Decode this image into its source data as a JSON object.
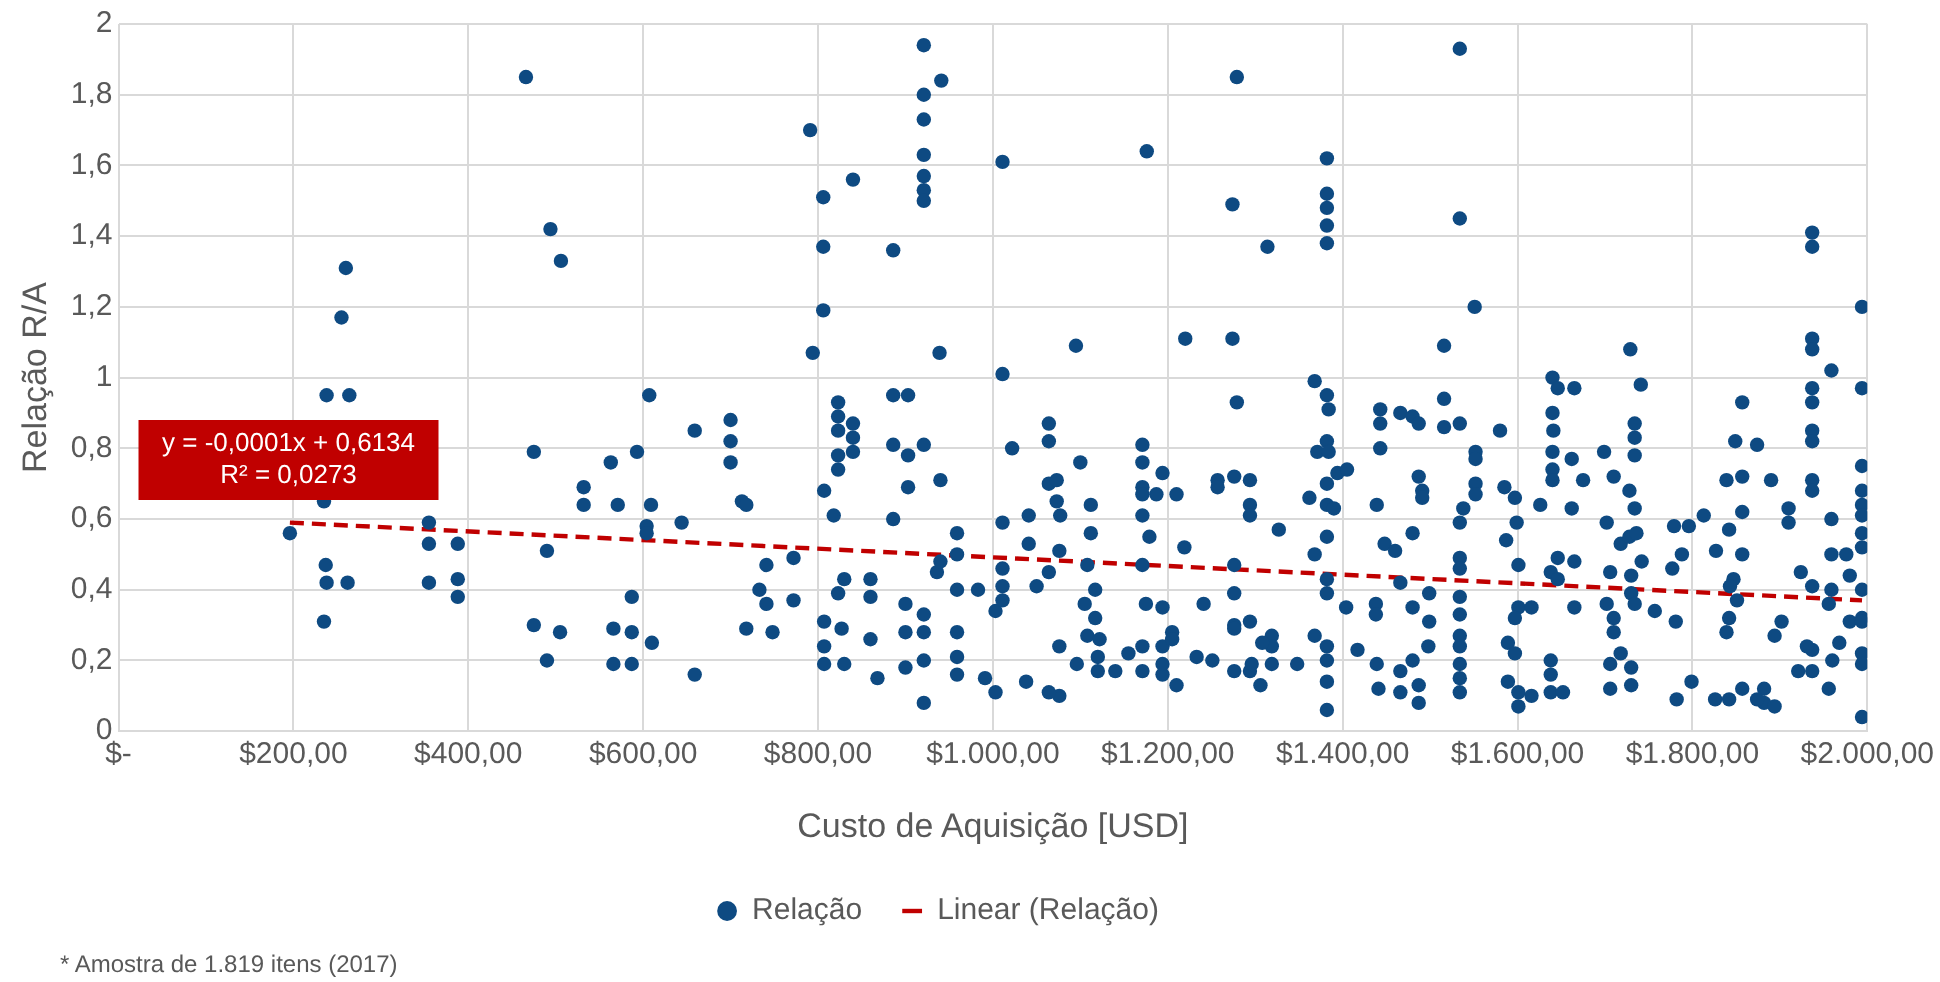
{
  "chart_data": {
    "type": "scatter",
    "xlabel": "Custo de Aquisição [USD]",
    "ylabel": "Relação R/A",
    "xlim": [
      0,
      2000
    ],
    "ylim": [
      0,
      2
    ],
    "xticks": [
      {
        "value": 0,
        "label": "$-"
      },
      {
        "value": 200,
        "label": "$200,00"
      },
      {
        "value": 400,
        "label": "$400,00"
      },
      {
        "value": 600,
        "label": "$600,00"
      },
      {
        "value": 800,
        "label": "$800,00"
      },
      {
        "value": 1000,
        "label": "$1.000,00"
      },
      {
        "value": 1200,
        "label": "$1.200,00"
      },
      {
        "value": 1400,
        "label": "$1.400,00"
      },
      {
        "value": 1600,
        "label": "$1.600,00"
      },
      {
        "value": 1800,
        "label": "$1.800,00"
      },
      {
        "value": 2000,
        "label": "$2.000,00"
      }
    ],
    "yticks": [
      0,
      {
        "value": 0.2,
        "label": "0,2"
      },
      {
        "value": 0.4,
        "label": "0,4"
      },
      {
        "value": 0.6,
        "label": "0,6"
      },
      {
        "value": 0.8,
        "label": "0,8"
      },
      1,
      {
        "value": 1.2,
        "label": "1,2"
      },
      {
        "value": 1.4,
        "label": "1,4"
      },
      {
        "value": 1.6,
        "label": "1,6"
      },
      {
        "value": 1.8,
        "label": "1,8"
      },
      2
    ],
    "grid": true,
    "legend": "bottom",
    "annotations": [
      "y = -0,0001x + 0,6134",
      "R² = 0,0273",
      "* Amostra de 1.819 itens (2017)"
    ],
    "series": [
      {
        "type": "scatter",
        "name": "Relação",
        "color": "#0e4a82",
        "marker": "circle",
        "x": [
          466,
          494,
          506,
          260,
          255,
          238,
          264,
          196,
          235,
          237,
          238,
          262,
          235,
          355,
          355,
          388,
          355,
          388,
          388,
          475,
          490,
          475,
          505,
          490,
          532,
          532,
          563,
          593,
          607,
          571,
          609,
          604,
          604,
          644,
          587,
          566,
          587,
          610,
          566,
          587,
          659,
          700,
          700,
          659,
          713,
          700,
          718,
          741,
          733,
          741,
          772,
          772,
          718,
          748,
          791,
          806,
          806,
          806,
          794,
          840,
          886,
          921,
          921,
          921,
          921,
          921,
          921,
          921,
          941,
          939,
          823,
          823,
          823,
          840,
          840,
          840,
          823,
          823,
          807,
          818,
          807,
          827,
          807,
          807,
          830,
          823,
          830,
          886,
          903,
          886,
          903,
          903,
          886,
          860,
          860,
          860,
          868,
          900,
          900,
          900,
          921,
          936,
          921,
          921,
          921,
          940,
          921,
          940,
          959,
          959,
          959,
          959,
          959,
          959,
          1011,
          1011,
          1011,
          1041,
          1022,
          1011,
          1011,
          1003,
          1011,
          983,
          991,
          1003,
          1038,
          1064,
          1064,
          1064,
          1073,
          1073,
          1077,
          1041,
          1076,
          1064,
          1050,
          1076,
          1076,
          1064,
          1095,
          1100,
          1112,
          1112,
          1108,
          1105,
          1117,
          1117,
          1108,
          1122,
          1120,
          1096,
          1120,
          1140,
          1155,
          1171,
          1194,
          1210,
          1176,
          1171,
          1171,
          1171,
          1171,
          1171,
          1179,
          1171,
          1175,
          1194,
          1171,
          1205,
          1194,
          1205,
          1194,
          1194,
          1210,
          1187,
          1219,
          1220,
          1233,
          1251,
          1241,
          1279,
          1274,
          1274,
          1279,
          1257,
          1257,
          1276,
          1294,
          1294,
          1294,
          1276,
          1276,
          1276,
          1276,
          1294,
          1276,
          1294,
          1306,
          1296,
          1319,
          1319,
          1308,
          1319,
          1348,
          1327,
          1314,
          1382,
          1382,
          1382,
          1382,
          1382,
          1368,
          1382,
          1382,
          1371,
          1382,
          1362,
          1382,
          1368,
          1382,
          1382,
          1382,
          1368,
          1382,
          1382,
          1382,
          1382,
          1534,
          1534,
          1551,
          1516,
          1384,
          1384,
          1394,
          1405,
          1390,
          1404,
          1417,
          1443,
          1443,
          1443,
          1439,
          1448,
          1460,
          1466,
          1438,
          1438,
          1480,
          1499,
          1499,
          1498,
          1439,
          1441,
          1466,
          1466,
          1487,
          1487,
          1480,
          1480,
          1466,
          1480,
          1487,
          1487,
          1491,
          1491,
          1516,
          1516,
          1534,
          1538,
          1534,
          1534,
          1534,
          1534,
          1534,
          1534,
          1534,
          1534,
          1534,
          1534,
          1552,
          1552,
          1552,
          1552,
          1580,
          1585,
          1597,
          1599,
          1587,
          1601,
          1601,
          1616,
          1597,
          1589,
          1597,
          1589,
          1601,
          1616,
          1601,
          1626,
          1640,
          1646,
          1665,
          1640,
          1641,
          1640,
          1640,
          1640,
          1662,
          1675,
          1662,
          1646,
          1638,
          1665,
          1646,
          1665,
          1638,
          1638,
          1638,
          1652,
          1699,
          1710,
          1702,
          1706,
          1702,
          1710,
          1710,
          1718,
          1706,
          1706,
          1730,
          1730,
          1729,
          1741,
          1734,
          1734,
          1734,
          1734,
          1728,
          1718,
          1728,
          1736,
          1742,
          1730,
          1730,
          1734,
          1757,
          1781,
          1777,
          1788,
          1779,
          1796,
          1813,
          1782,
          1799,
          1857,
          1849,
          1874,
          1839,
          1857,
          1890,
          1857,
          1842,
          1827,
          1857,
          1847,
          1843,
          1851,
          1842,
          1839,
          1826,
          1842,
          1857,
          1882,
          1882,
          1894,
          1874,
          1894,
          1902,
          1910,
          1910,
          1937,
          1937,
          1937,
          1937,
          1959,
          1937,
          1937,
          1937,
          1937,
          1937,
          1937,
          1959,
          1959,
          1976,
          1980,
          1959,
          1937,
          1956,
          1980,
          1968,
          1960,
          1937,
          1937,
          1921,
          1956,
          1931,
          1924,
          1994,
          1994,
          1994,
          1994,
          1994,
          1994,
          1994,
          1994,
          1994,
          1994,
          1994,
          1994,
          1994,
          1994
        ],
        "values": [
          1.85,
          1.42,
          1.33,
          1.31,
          1.17,
          0.95,
          0.95,
          0.56,
          0.65,
          0.47,
          0.42,
          0.42,
          0.31,
          0.59,
          0.53,
          0.53,
          0.42,
          0.43,
          0.38,
          0.79,
          0.51,
          0.3,
          0.28,
          0.2,
          0.69,
          0.64,
          0.76,
          0.79,
          0.95,
          0.64,
          0.64,
          0.58,
          0.56,
          0.59,
          0.38,
          0.29,
          0.28,
          0.25,
          0.19,
          0.19,
          0.85,
          0.88,
          0.76,
          0.16,
          0.65,
          0.82,
          0.64,
          0.47,
          0.4,
          0.36,
          0.49,
          0.37,
          0.29,
          0.28,
          1.7,
          1.51,
          1.37,
          1.19,
          1.07,
          1.56,
          1.36,
          1.94,
          1.8,
          1.73,
          1.63,
          1.57,
          1.53,
          1.5,
          1.84,
          1.07,
          0.93,
          0.89,
          0.85,
          0.87,
          0.83,
          0.79,
          0.78,
          0.74,
          0.68,
          0.61,
          0.31,
          0.29,
          0.24,
          0.19,
          0.19,
          0.39,
          0.43,
          0.95,
          0.95,
          0.81,
          0.78,
          0.69,
          0.6,
          0.43,
          0.38,
          0.26,
          0.15,
          0.36,
          0.28,
          0.18,
          0.08,
          0.45,
          0.33,
          0.28,
          0.2,
          0.48,
          0.81,
          0.71,
          0.56,
          0.5,
          0.4,
          0.28,
          0.21,
          0.16,
          1.61,
          1.01,
          0.59,
          0.61,
          0.8,
          0.46,
          0.41,
          0.34,
          0.37,
          0.4,
          0.15,
          0.11,
          0.14,
          0.87,
          0.82,
          0.7,
          0.71,
          0.65,
          0.61,
          0.53,
          0.51,
          0.45,
          0.41,
          0.24,
          0.1,
          0.11,
          1.09,
          0.76,
          0.64,
          0.56,
          0.47,
          0.36,
          0.4,
          0.32,
          0.27,
          0.26,
          0.21,
          0.19,
          0.17,
          0.17,
          0.22,
          0.17,
          0.16,
          0.13,
          1.64,
          0.81,
          0.76,
          0.69,
          0.67,
          0.61,
          0.55,
          0.47,
          0.36,
          0.35,
          0.24,
          0.28,
          0.24,
          0.26,
          0.19,
          0.73,
          0.67,
          0.67,
          0.52,
          1.11,
          0.21,
          0.2,
          0.36,
          1.85,
          1.49,
          1.11,
          0.93,
          0.71,
          0.69,
          0.72,
          0.71,
          0.64,
          0.61,
          0.47,
          0.39,
          0.3,
          0.29,
          0.31,
          0.17,
          0.17,
          0.13,
          0.19,
          0.27,
          0.24,
          0.25,
          0.19,
          0.19,
          0.57,
          1.37,
          1.62,
          1.52,
          1.48,
          1.43,
          1.38,
          0.99,
          0.95,
          0.82,
          0.79,
          0.7,
          0.66,
          0.64,
          0.5,
          0.55,
          0.43,
          0.39,
          0.27,
          0.24,
          0.2,
          0.14,
          0.06,
          1.93,
          1.45,
          1.2,
          1.09,
          0.91,
          0.79,
          0.73,
          0.74,
          0.63,
          0.35,
          0.23,
          0.91,
          0.87,
          0.8,
          0.64,
          0.53,
          0.51,
          0.42,
          0.36,
          0.33,
          0.35,
          0.39,
          0.31,
          0.24,
          0.19,
          0.12,
          0.17,
          0.11,
          0.13,
          0.08,
          0.2,
          0.56,
          0.9,
          0.89,
          0.87,
          0.72,
          0.68,
          0.66,
          0.94,
          0.86,
          0.87,
          0.63,
          0.59,
          0.49,
          0.46,
          0.38,
          0.33,
          0.27,
          0.24,
          0.19,
          0.15,
          0.11,
          0.79,
          0.77,
          0.7,
          0.67,
          0.85,
          0.69,
          0.66,
          0.59,
          0.54,
          0.47,
          0.35,
          0.35,
          0.32,
          0.25,
          0.22,
          0.14,
          0.07,
          0.1,
          0.11,
          0.64,
          1.0,
          0.97,
          0.97,
          0.9,
          0.85,
          0.79,
          0.74,
          0.71,
          0.77,
          0.71,
          0.63,
          0.49,
          0.45,
          0.48,
          0.43,
          0.35,
          0.2,
          0.16,
          0.11,
          0.11,
          0.79,
          0.72,
          0.59,
          0.45,
          0.36,
          0.32,
          0.28,
          0.22,
          0.19,
          0.12,
          0.13,
          0.18,
          1.08,
          0.98,
          0.87,
          0.83,
          0.78,
          0.63,
          0.68,
          0.53,
          0.55,
          0.56,
          0.48,
          0.44,
          0.39,
          0.36,
          0.34,
          0.31,
          0.46,
          0.5,
          0.58,
          0.58,
          0.61,
          0.09,
          0.14,
          0.93,
          0.82,
          0.81,
          0.71,
          0.72,
          0.71,
          0.62,
          0.57,
          0.51,
          0.5,
          0.43,
          0.41,
          0.37,
          0.32,
          0.28,
          0.09,
          0.09,
          0.12,
          0.12,
          0.08,
          0.07,
          0.09,
          0.27,
          0.31,
          0.63,
          0.59,
          1.41,
          1.37,
          1.11,
          1.08,
          1.02,
          0.97,
          0.93,
          0.85,
          0.82,
          0.71,
          0.68,
          0.6,
          0.5,
          0.5,
          0.44,
          0.4,
          0.41,
          0.36,
          0.31,
          0.25,
          0.2,
          0.23,
          0.17,
          0.17,
          0.12,
          0.24,
          0.45,
          1.2,
          0.97,
          0.75,
          0.68,
          0.64,
          0.61,
          0.56,
          0.52,
          0.4,
          0.32,
          0.31,
          0.22,
          0.19,
          0.04
        ]
      },
      {
        "type": "line",
        "name": "Linear (Relação)",
        "color": "#c00000",
        "marker": "none",
        "line_style": "dashed",
        "x": [
          196,
          1994
        ],
        "values": [
          0.59,
          0.37
        ]
      }
    ]
  }
}
